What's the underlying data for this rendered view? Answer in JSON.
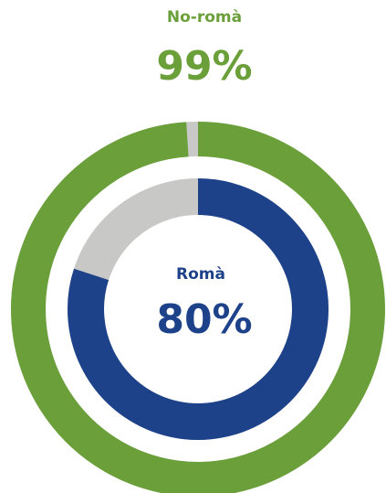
{
  "chart_data": [
    {
      "type": "donut",
      "title": "No-romà",
      "values": [
        99
      ],
      "value_labels": [
        "99%"
      ],
      "color": "#6a9f3a",
      "rest_color": "#c8c8c6"
    },
    {
      "type": "donut",
      "title": "Romà",
      "values": [
        80
      ],
      "value_labels": [
        "80%"
      ],
      "color": "#1d428a",
      "rest_color": "#c8c8c6"
    }
  ]
}
